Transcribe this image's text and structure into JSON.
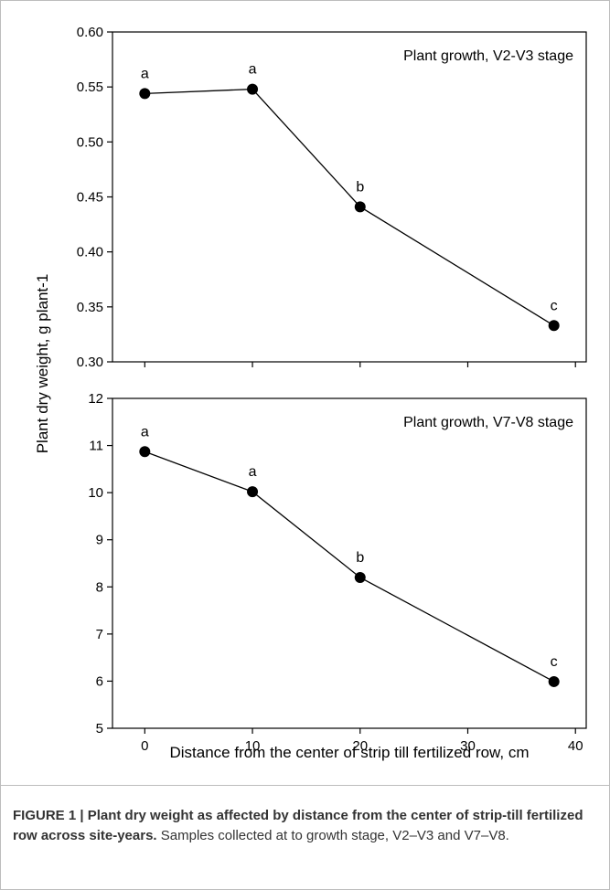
{
  "chart_data": [
    {
      "type": "line",
      "title": "Plant growth, V2-V3 stage",
      "x": [
        0,
        10,
        20,
        38
      ],
      "values": [
        0.544,
        0.548,
        0.441,
        0.333
      ],
      "point_labels": [
        "a",
        "a",
        "b",
        "c"
      ],
      "xlim": [
        -3,
        41
      ],
      "ylim": [
        0.3,
        0.6
      ],
      "yticks": [
        "0.30",
        "0.35",
        "0.40",
        "0.45",
        "0.50",
        "0.55",
        "0.60"
      ],
      "ytick_values": [
        0.3,
        0.35,
        0.4,
        0.45,
        0.5,
        0.55,
        0.6
      ],
      "xticks": [
        0,
        10,
        20,
        30,
        40
      ],
      "grid": false
    },
    {
      "type": "line",
      "title": "Plant growth, V7-V8 stage",
      "x": [
        0,
        10,
        20,
        38
      ],
      "values": [
        10.87,
        10.02,
        8.2,
        5.99
      ],
      "point_labels": [
        "a",
        "a",
        "b",
        "c"
      ],
      "xlim": [
        -3,
        41
      ],
      "ylim": [
        5,
        12
      ],
      "yticks": [
        "5",
        "6",
        "7",
        "8",
        "9",
        "10",
        "11",
        "12"
      ],
      "ytick_values": [
        5,
        6,
        7,
        8,
        9,
        10,
        11,
        12
      ],
      "xticks": [
        "0",
        "10",
        "20",
        "30",
        "40"
      ],
      "xtick_values": [
        0,
        10,
        20,
        30,
        40
      ],
      "grid": false
    }
  ],
  "axes": {
    "ylabel": "Plant dry weight, g plant-1",
    "xlabel": "Distance from the center of strip till fertilized row, cm"
  },
  "caption": {
    "bold": "FIGURE 1 | Plant dry weight as affected by distance from the center of strip-till fertilized row across site-years.",
    "text": " Samples collected at to growth stage, V2–V3 and V7–V8."
  }
}
